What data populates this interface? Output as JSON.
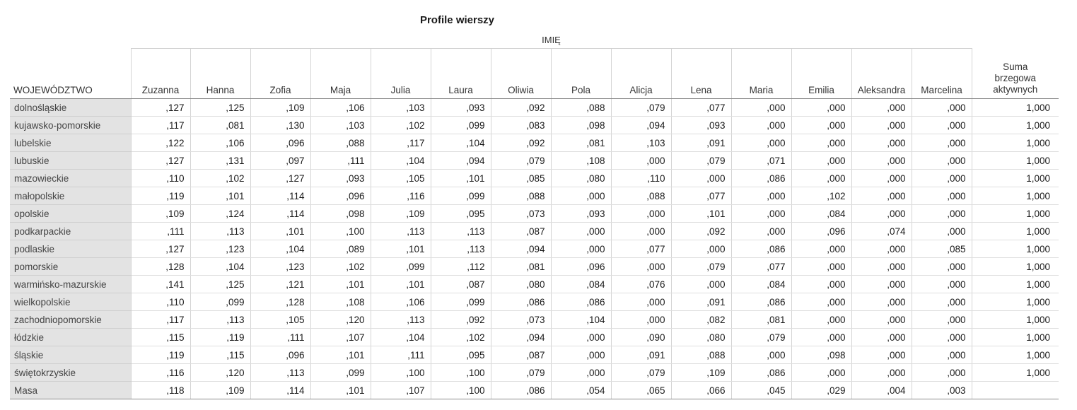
{
  "title": "Profile wierszy",
  "column_group_label": "IMIĘ",
  "row_header_label": "WOJEWÓDZTWO",
  "columns": [
    "Zuzanna",
    "Hanna",
    "Zofia",
    "Maja",
    "Julia",
    "Laura",
    "Oliwia",
    "Pola",
    "Alicja",
    "Lena",
    "Maria",
    "Emilia",
    "Aleksandra",
    "Marcelina"
  ],
  "sum_column_label": [
    "Suma",
    "brzegowa",
    "aktywnych"
  ],
  "rows": [
    {
      "label": "dolnośląskie",
      "values": [
        ",127",
        ",125",
        ",109",
        ",106",
        ",103",
        ",093",
        ",092",
        ",088",
        ",079",
        ",077",
        ",000",
        ",000",
        ",000",
        ",000"
      ],
      "sum": "1,000"
    },
    {
      "label": "kujawsko-pomorskie",
      "values": [
        ",117",
        ",081",
        ",130",
        ",103",
        ",102",
        ",099",
        ",083",
        ",098",
        ",094",
        ",093",
        ",000",
        ",000",
        ",000",
        ",000"
      ],
      "sum": "1,000"
    },
    {
      "label": "lubelskie",
      "values": [
        ",122",
        ",106",
        ",096",
        ",088",
        ",117",
        ",104",
        ",092",
        ",081",
        ",103",
        ",091",
        ",000",
        ",000",
        ",000",
        ",000"
      ],
      "sum": "1,000"
    },
    {
      "label": "lubuskie",
      "values": [
        ",127",
        ",131",
        ",097",
        ",111",
        ",104",
        ",094",
        ",079",
        ",108",
        ",000",
        ",079",
        ",071",
        ",000",
        ",000",
        ",000"
      ],
      "sum": "1,000"
    },
    {
      "label": "mazowieckie",
      "values": [
        ",110",
        ",102",
        ",127",
        ",093",
        ",105",
        ",101",
        ",085",
        ",080",
        ",110",
        ",000",
        ",086",
        ",000",
        ",000",
        ",000"
      ],
      "sum": "1,000"
    },
    {
      "label": "małopolskie",
      "values": [
        ",119",
        ",101",
        ",114",
        ",096",
        ",116",
        ",099",
        ",088",
        ",000",
        ",088",
        ",077",
        ",000",
        ",102",
        ",000",
        ",000"
      ],
      "sum": "1,000"
    },
    {
      "label": "opolskie",
      "values": [
        ",109",
        ",124",
        ",114",
        ",098",
        ",109",
        ",095",
        ",073",
        ",093",
        ",000",
        ",101",
        ",000",
        ",084",
        ",000",
        ",000"
      ],
      "sum": "1,000"
    },
    {
      "label": "podkarpackie",
      "values": [
        ",111",
        ",113",
        ",101",
        ",100",
        ",113",
        ",113",
        ",087",
        ",000",
        ",000",
        ",092",
        ",000",
        ",096",
        ",074",
        ",000"
      ],
      "sum": "1,000"
    },
    {
      "label": "podlaskie",
      "values": [
        ",127",
        ",123",
        ",104",
        ",089",
        ",101",
        ",113",
        ",094",
        ",000",
        ",077",
        ",000",
        ",086",
        ",000",
        ",000",
        ",085"
      ],
      "sum": "1,000"
    },
    {
      "label": "pomorskie",
      "values": [
        ",128",
        ",104",
        ",123",
        ",102",
        ",099",
        ",112",
        ",081",
        ",096",
        ",000",
        ",079",
        ",077",
        ",000",
        ",000",
        ",000"
      ],
      "sum": "1,000"
    },
    {
      "label": "warmińsko-mazurskie",
      "values": [
        ",141",
        ",125",
        ",121",
        ",101",
        ",101",
        ",087",
        ",080",
        ",084",
        ",076",
        ",000",
        ",084",
        ",000",
        ",000",
        ",000"
      ],
      "sum": "1,000"
    },
    {
      "label": "wielkopolskie",
      "values": [
        ",110",
        ",099",
        ",128",
        ",108",
        ",106",
        ",099",
        ",086",
        ",086",
        ",000",
        ",091",
        ",086",
        ",000",
        ",000",
        ",000"
      ],
      "sum": "1,000"
    },
    {
      "label": "zachodniopomorskie",
      "values": [
        ",117",
        ",113",
        ",105",
        ",120",
        ",113",
        ",092",
        ",073",
        ",104",
        ",000",
        ",082",
        ",081",
        ",000",
        ",000",
        ",000"
      ],
      "sum": "1,000"
    },
    {
      "label": "łódzkie",
      "values": [
        ",115",
        ",119",
        ",111",
        ",107",
        ",104",
        ",102",
        ",094",
        ",000",
        ",090",
        ",080",
        ",079",
        ",000",
        ",000",
        ",000"
      ],
      "sum": "1,000"
    },
    {
      "label": "śląskie",
      "values": [
        ",119",
        ",115",
        ",096",
        ",101",
        ",111",
        ",095",
        ",087",
        ",000",
        ",091",
        ",088",
        ",000",
        ",098",
        ",000",
        ",000"
      ],
      "sum": "1,000"
    },
    {
      "label": "świętokrzyskie",
      "values": [
        ",116",
        ",120",
        ",113",
        ",099",
        ",100",
        ",100",
        ",079",
        ",000",
        ",079",
        ",109",
        ",086",
        ",000",
        ",000",
        ",000"
      ],
      "sum": "1,000"
    },
    {
      "label": "Masa",
      "values": [
        ",118",
        ",109",
        ",114",
        ",101",
        ",107",
        ",100",
        ",086",
        ",054",
        ",065",
        ",066",
        ",045",
        ",029",
        ",004",
        ",003"
      ],
      "sum": ""
    }
  ],
  "colors": {
    "row_header_bg": "#e3e3e3",
    "grid": "#d4d4d4"
  }
}
